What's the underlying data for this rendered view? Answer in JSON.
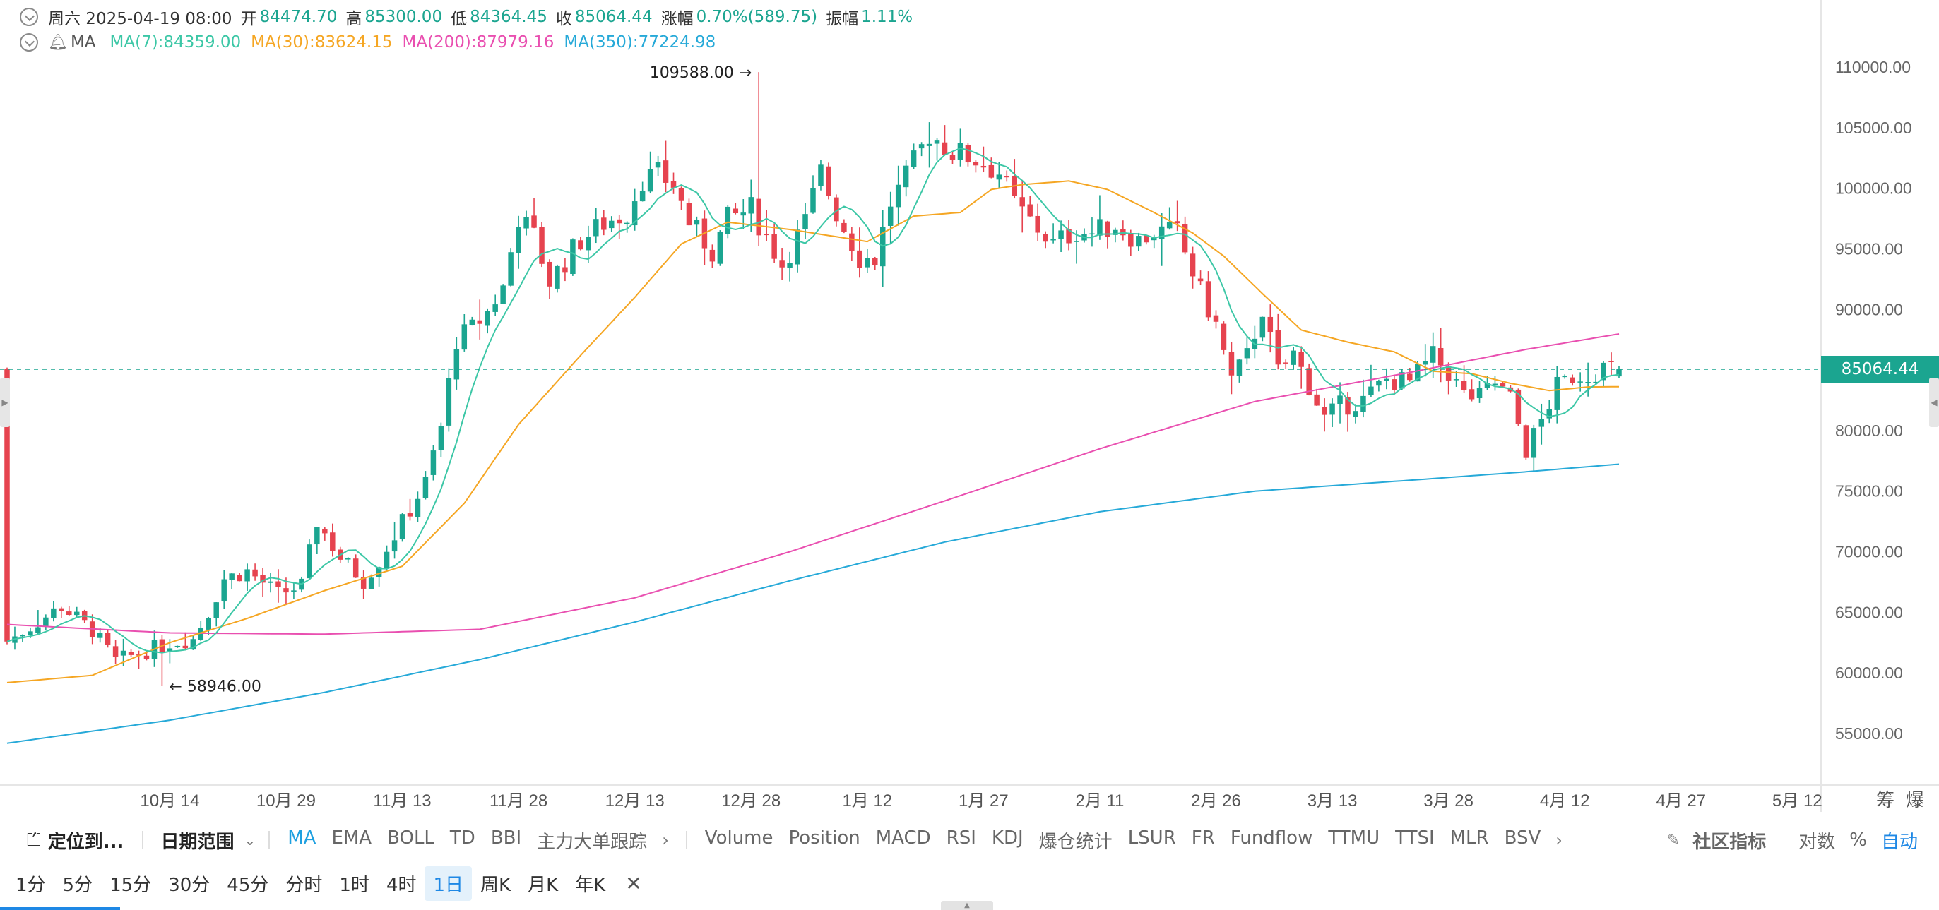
{
  "info": {
    "date_label": "周六 2025-04-19 08:00",
    "open_key": "开",
    "open": "84474.70",
    "high_key": "高",
    "high": "85300.00",
    "low_key": "低",
    "low": "84364.45",
    "close_key": "收",
    "close": "85064.44",
    "change_key": "涨幅",
    "change": "0.70%(589.75)",
    "amp_key": "振幅",
    "amp": "1.11%"
  },
  "ma": {
    "label": "MA",
    "ma7": "MA(7):84359.00",
    "ma30": "MA(30):83624.15",
    "ma200": "MA(200):87979.16",
    "ma350": "MA(350):77224.98"
  },
  "colors": {
    "up": "#1ba590",
    "down": "#e6434f",
    "ma7": "#3cc7a6",
    "ma30": "#f5a623",
    "ma200": "#e94fb0",
    "ma350": "#26a9d8",
    "accent": "#1e88e5"
  },
  "chart_data": {
    "type": "candlestick",
    "y_ticks": [
      "110000.00",
      "105000.00",
      "100000.00",
      "95000.00",
      "90000.00",
      "85000.00",
      "80000.00",
      "75000.00",
      "70000.00",
      "65000.00",
      "60000.00",
      "55000.00"
    ],
    "ylim": [
      51000,
      113000
    ],
    "x_ticks": [
      "10月 14",
      "10月 29",
      "11月 13",
      "11月 28",
      "12月 13",
      "12月 28",
      "1月 12",
      "1月 27",
      "2月 11",
      "2月 26",
      "3月 13",
      "3月 28",
      "4月 12",
      "4月 27",
      "5月 12"
    ],
    "x_tick_days": [
      0,
      15,
      30,
      45,
      60,
      75,
      90,
      105,
      120,
      135,
      150,
      165,
      180,
      195,
      210
    ],
    "x_start_day": -21,
    "x_end_day": 187,
    "current_price": "85064.44",
    "max_label": "109588.00 →",
    "min_label": "← 58946.00",
    "max_day": 76,
    "max_value": 109588,
    "min_day": -1,
    "min_value": 58946,
    "axis_tail_labels": [
      "筹",
      "爆"
    ],
    "close_anchors": [
      [
        -21,
        62600
      ],
      [
        -18,
        63800
      ],
      [
        -14,
        65500
      ],
      [
        -10,
        63500
      ],
      [
        -7,
        61000
      ],
      [
        -3,
        61800
      ],
      [
        0,
        62500
      ],
      [
        3,
        62800
      ],
      [
        5,
        65000
      ],
      [
        7,
        67800
      ],
      [
        10,
        68400
      ],
      [
        14,
        66500
      ],
      [
        17,
        67200
      ],
      [
        19,
        72500
      ],
      [
        22,
        69500
      ],
      [
        25,
        67600
      ],
      [
        27,
        69300
      ],
      [
        30,
        72400
      ],
      [
        33,
        75700
      ],
      [
        35,
        80300
      ],
      [
        37,
        87500
      ],
      [
        39,
        88400
      ],
      [
        41,
        89800
      ],
      [
        43,
        91800
      ],
      [
        45,
        97700
      ],
      [
        47,
        96000
      ],
      [
        49,
        92300
      ],
      [
        53,
        95700
      ],
      [
        56,
        97100
      ],
      [
        59,
        98000
      ],
      [
        61,
        100800
      ],
      [
        63,
        101100
      ],
      [
        65,
        100300
      ],
      [
        67,
        97200
      ],
      [
        70,
        94800
      ],
      [
        72,
        97400
      ],
      [
        75,
        98300
      ],
      [
        77,
        96000
      ],
      [
        79,
        93700
      ],
      [
        82,
        97200
      ],
      [
        84,
        101300
      ],
      [
        86,
        98000
      ],
      [
        89,
        94300
      ],
      [
        91,
        94200
      ],
      [
        93,
        98800
      ],
      [
        95,
        100800
      ],
      [
        98,
        104500
      ],
      [
        101,
        103000
      ],
      [
        104,
        102400
      ],
      [
        107,
        101300
      ],
      [
        109,
        98700
      ],
      [
        111,
        97300
      ],
      [
        114,
        95400
      ],
      [
        117,
        96500
      ],
      [
        119,
        96300
      ],
      [
        122,
        97000
      ],
      [
        125,
        95700
      ],
      [
        127,
        96400
      ],
      [
        130,
        96300
      ],
      [
        133,
        91400
      ],
      [
        135,
        88700
      ],
      [
        137,
        84200
      ],
      [
        139,
        86100
      ],
      [
        141,
        90100
      ],
      [
        143,
        84800
      ],
      [
        145,
        86300
      ],
      [
        147,
        83700
      ],
      [
        149,
        81000
      ],
      [
        151,
        82000
      ],
      [
        154,
        82500
      ],
      [
        157,
        84200
      ],
      [
        160,
        84000
      ],
      [
        163,
        86100
      ],
      [
        165,
        84800
      ],
      [
        167,
        82900
      ],
      [
        169,
        82700
      ],
      [
        171,
        83900
      ],
      [
        173,
        82600
      ],
      [
        175,
        78400
      ],
      [
        177,
        80800
      ],
      [
        179,
        83600
      ],
      [
        181,
        84500
      ],
      [
        183,
        84700
      ],
      [
        185,
        85200
      ],
      [
        187,
        85064
      ]
    ],
    "ma30_anchors": [
      [
        -21,
        59200
      ],
      [
        -10,
        59800
      ],
      [
        0,
        62500
      ],
      [
        10,
        64500
      ],
      [
        20,
        66800
      ],
      [
        30,
        68800
      ],
      [
        38,
        74000
      ],
      [
        45,
        80500
      ],
      [
        53,
        86200
      ],
      [
        60,
        91000
      ],
      [
        66,
        95400
      ],
      [
        72,
        97200
      ],
      [
        80,
        96600
      ],
      [
        86,
        96000
      ],
      [
        90,
        95600
      ],
      [
        96,
        97700
      ],
      [
        102,
        98000
      ],
      [
        106,
        99900
      ],
      [
        110,
        100300
      ],
      [
        116,
        100600
      ],
      [
        121,
        99900
      ],
      [
        127,
        98000
      ],
      [
        132,
        96300
      ],
      [
        136,
        94400
      ],
      [
        141,
        91300
      ],
      [
        146,
        88300
      ],
      [
        152,
        87300
      ],
      [
        158,
        86500
      ],
      [
        163,
        84900
      ],
      [
        168,
        84700
      ],
      [
        173,
        83900
      ],
      [
        178,
        83300
      ],
      [
        183,
        83600
      ],
      [
        187,
        83624
      ]
    ],
    "ma200_anchors": [
      [
        -21,
        64000
      ],
      [
        0,
        63300
      ],
      [
        20,
        63200
      ],
      [
        40,
        63600
      ],
      [
        60,
        66200
      ],
      [
        80,
        70000
      ],
      [
        100,
        74200
      ],
      [
        120,
        78500
      ],
      [
        140,
        82400
      ],
      [
        160,
        84800
      ],
      [
        175,
        86700
      ],
      [
        187,
        87979
      ]
    ],
    "ma350_anchors": [
      [
        -21,
        54200
      ],
      [
        0,
        56100
      ],
      [
        20,
        58400
      ],
      [
        40,
        61100
      ],
      [
        60,
        64200
      ],
      [
        80,
        67600
      ],
      [
        100,
        70800
      ],
      [
        120,
        73300
      ],
      [
        140,
        75000
      ],
      [
        160,
        75900
      ],
      [
        175,
        76600
      ],
      [
        187,
        77225
      ]
    ]
  },
  "toolbar": {
    "locate": "定位到...",
    "date_range": "日期范围",
    "indicators_main": [
      "MA",
      "EMA",
      "BOLL",
      "TD",
      "BBI",
      "主力大单跟踪"
    ],
    "indicators_sub": [
      "Volume",
      "Position",
      "MACD",
      "RSI",
      "KDJ",
      "爆仓统计",
      "LSUR",
      "FR",
      "Fundflow",
      "TTMU",
      "TTSI",
      "MLR",
      "BSV"
    ],
    "community": "社区指标",
    "log": "对数",
    "percent": "%",
    "auto": "自动"
  },
  "timeframes": [
    "1分",
    "5分",
    "15分",
    "30分",
    "45分",
    "分时",
    "1时",
    "4时",
    "1日",
    "周K",
    "月K",
    "年K"
  ],
  "active_timeframe": "1日"
}
